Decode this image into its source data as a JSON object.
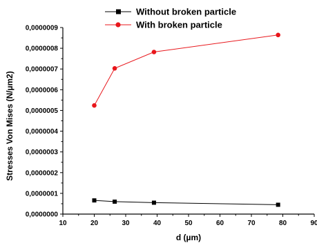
{
  "chart_data": {
    "type": "line",
    "xlabel": "d (µm)",
    "ylabel": "Stresses Von Mises (N/µm2)",
    "xlim": [
      10,
      90
    ],
    "ylim": [
      0,
      9e-07
    ],
    "x_ticks": [
      "10",
      "20",
      "30",
      "40",
      "50",
      "60",
      "70",
      "80",
      "90"
    ],
    "y_ticks": [
      "0,0000000",
      "0,0000001",
      "0,0000002",
      "0,0000003",
      "0,0000004",
      "0,0000005",
      "0,0000006",
      "0,0000007",
      "0,0000008",
      "0,0000009"
    ],
    "legend_position": "top",
    "grid": false,
    "series": [
      {
        "name": "Without broken particle",
        "color": "#000000",
        "marker": "square",
        "x": [
          20,
          26.5,
          39,
          78.5
        ],
        "y": [
          6.6e-08,
          6e-08,
          5.5e-08,
          4.5e-08
        ]
      },
      {
        "name": "With broken particle",
        "color": "#e8161b",
        "marker": "circle",
        "x": [
          20,
          26.5,
          39,
          78.5
        ],
        "y": [
          5.24e-07,
          7.03e-07,
          7.82e-07,
          8.64e-07
        ]
      }
    ]
  }
}
